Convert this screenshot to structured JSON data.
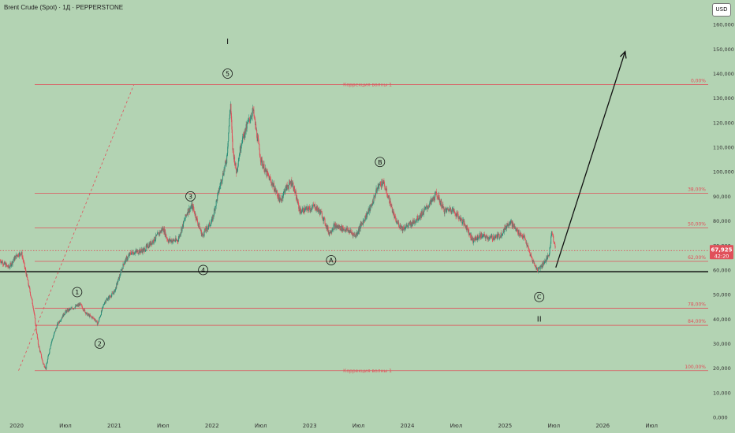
{
  "header": {
    "title": "Brent Crude (Spot) · 1Д · PEPPERSTONE",
    "currency": "USD"
  },
  "colors": {
    "background": "#b3d3b3",
    "fib": "#e0505a",
    "up": "#2d8f7a",
    "down": "#e0505a",
    "ink": "#111111",
    "badge": "#e0505a"
  },
  "chart_data": {
    "type": "candlestick",
    "title": "Brent Crude (Spot) · 1Д · PEPPERSTONE",
    "ylim": [
      0,
      170
    ],
    "yticks": [
      "0,000",
      "10,000",
      "20,000",
      "30,000",
      "40,000",
      "50,000",
      "60,000",
      "70,000",
      "80,000",
      "90,000",
      "100,000",
      "110,000",
      "120,000",
      "130,000",
      "140,000",
      "150,000",
      "160,000"
    ],
    "xlim": [
      2019.83,
      2027.08
    ],
    "xticks": [
      {
        "t": 2020.0,
        "label": "2020"
      },
      {
        "t": 2020.5,
        "label": "Июл"
      },
      {
        "t": 2021.0,
        "label": "2021"
      },
      {
        "t": 2021.5,
        "label": "Июл"
      },
      {
        "t": 2022.0,
        "label": "2022"
      },
      {
        "t": 2022.5,
        "label": "Июл"
      },
      {
        "t": 2023.0,
        "label": "2023"
      },
      {
        "t": 2023.5,
        "label": "Июл"
      },
      {
        "t": 2024.0,
        "label": "2024"
      },
      {
        "t": 2024.5,
        "label": "Июл"
      },
      {
        "t": 2025.0,
        "label": "2025"
      },
      {
        "t": 2025.5,
        "label": "Июл"
      },
      {
        "t": 2026.0,
        "label": "2026"
      },
      {
        "t": 2026.5,
        "label": "Июл"
      }
    ],
    "price_path": [
      [
        2019.83,
        64
      ],
      [
        2019.92,
        61
      ],
      [
        2020.0,
        66
      ],
      [
        2020.05,
        67
      ],
      [
        2020.1,
        58
      ],
      [
        2020.17,
        45
      ],
      [
        2020.22,
        30
      ],
      [
        2020.27,
        22
      ],
      [
        2020.3,
        20
      ],
      [
        2020.35,
        30
      ],
      [
        2020.42,
        38
      ],
      [
        2020.5,
        43
      ],
      [
        2020.6,
        45
      ],
      [
        2020.65,
        46
      ],
      [
        2020.72,
        42
      ],
      [
        2020.8,
        40
      ],
      [
        2020.83,
        38
      ],
      [
        2020.9,
        47
      ],
      [
        2021.0,
        51
      ],
      [
        2021.1,
        63
      ],
      [
        2021.17,
        67
      ],
      [
        2021.3,
        68
      ],
      [
        2021.4,
        72
      ],
      [
        2021.5,
        77
      ],
      [
        2021.55,
        72
      ],
      [
        2021.65,
        72
      ],
      [
        2021.75,
        84
      ],
      [
        2021.8,
        86
      ],
      [
        2021.9,
        74
      ],
      [
        2022.0,
        80
      ],
      [
        2022.08,
        94
      ],
      [
        2022.15,
        105
      ],
      [
        2022.19,
        128
      ],
      [
        2022.21,
        110
      ],
      [
        2022.25,
        100
      ],
      [
        2022.3,
        112
      ],
      [
        2022.38,
        121
      ],
      [
        2022.42,
        125
      ],
      [
        2022.5,
        105
      ],
      [
        2022.55,
        100
      ],
      [
        2022.62,
        95
      ],
      [
        2022.7,
        88
      ],
      [
        2022.75,
        93
      ],
      [
        2022.82,
        96
      ],
      [
        2022.9,
        84
      ],
      [
        2023.0,
        85
      ],
      [
        2023.05,
        86
      ],
      [
        2023.12,
        83
      ],
      [
        2023.2,
        75
      ],
      [
        2023.25,
        78
      ],
      [
        2023.33,
        77
      ],
      [
        2023.4,
        76
      ],
      [
        2023.47,
        74
      ],
      [
        2023.55,
        80
      ],
      [
        2023.63,
        86
      ],
      [
        2023.7,
        94
      ],
      [
        2023.75,
        96
      ],
      [
        2023.82,
        88
      ],
      [
        2023.88,
        80
      ],
      [
        2023.95,
        77
      ],
      [
        2024.05,
        79
      ],
      [
        2024.15,
        83
      ],
      [
        2024.25,
        88
      ],
      [
        2024.3,
        91
      ],
      [
        2024.38,
        84
      ],
      [
        2024.45,
        85
      ],
      [
        2024.52,
        82
      ],
      [
        2024.6,
        78
      ],
      [
        2024.67,
        72
      ],
      [
        2024.75,
        74
      ],
      [
        2024.85,
        73
      ],
      [
        2024.95,
        74
      ],
      [
        2025.05,
        80
      ],
      [
        2025.12,
        76
      ],
      [
        2025.2,
        73
      ],
      [
        2025.27,
        65
      ],
      [
        2025.33,
        60
      ],
      [
        2025.38,
        62
      ],
      [
        2025.45,
        66
      ],
      [
        2025.48,
        76
      ],
      [
        2025.5,
        72
      ],
      [
        2025.52,
        68
      ]
    ],
    "last_price": "67,925",
    "countdown": "42:20",
    "fib_levels": [
      {
        "price": 135.5,
        "label": "0,00%",
        "caption": "Коррекция волны 1"
      },
      {
        "price": 91.3,
        "label": "38,00%",
        "caption": ""
      },
      {
        "price": 77.1,
        "label": "50,00%",
        "caption": ""
      },
      {
        "price": 63.5,
        "label": "62,00%",
        "caption": ""
      },
      {
        "price": 44.4,
        "label": "78,00%",
        "caption": ""
      },
      {
        "price": 37.5,
        "label": "84,00%",
        "caption": ""
      },
      {
        "price": 19.0,
        "label": "100,00%",
        "caption": "Коррекция волны 1"
      }
    ],
    "support_level": 59.3,
    "dotted_level": 67.9,
    "wave_labels": [
      {
        "text": "1",
        "t": 2020.62,
        "p": 51,
        "circled": true
      },
      {
        "text": "2",
        "t": 2020.85,
        "p": 30,
        "circled": true
      },
      {
        "text": "3",
        "t": 2021.78,
        "p": 90,
        "circled": true
      },
      {
        "text": "4",
        "t": 2021.91,
        "p": 60,
        "circled": true
      },
      {
        "text": "5",
        "t": 2022.16,
        "p": 140,
        "circled": true
      },
      {
        "text": "I",
        "t": 2022.16,
        "p": 153,
        "circled": false
      },
      {
        "text": "A",
        "t": 2023.22,
        "p": 64,
        "circled": true
      },
      {
        "text": "B",
        "t": 2023.72,
        "p": 104,
        "circled": true
      },
      {
        "text": "C",
        "t": 2025.35,
        "p": 49,
        "circled": true
      },
      {
        "text": "II",
        "t": 2025.35,
        "p": 40,
        "circled": false
      }
    ],
    "projection_arrow": {
      "from": [
        2025.52,
        61
      ],
      "to": [
        2026.23,
        149
      ]
    },
    "dashed_line": {
      "from": [
        2020.02,
        19
      ],
      "to": [
        2021.2,
        135.5
      ]
    }
  }
}
